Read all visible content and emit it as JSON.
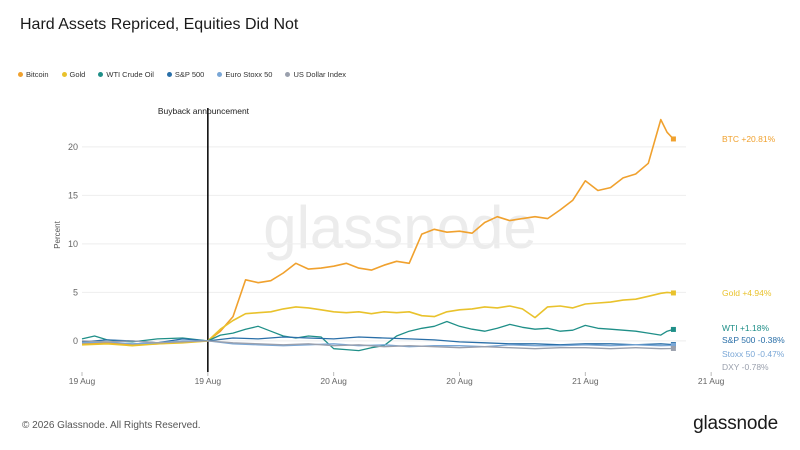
{
  "title": "Hard Assets Repriced, Equities Did Not",
  "footer": {
    "copyright": "© 2026 Glassnode. All Rights Reserved.",
    "logo": "glassnode"
  },
  "watermark": "glassnode",
  "colors": {
    "bitcoin": "#f0a12e",
    "gold": "#e9c22c",
    "wti": "#1f8f88",
    "sp500": "#2a6fa8",
    "stoxx": "#7aa7d6",
    "dxy": "#9aa0ad"
  },
  "chart_data": {
    "type": "line",
    "ylabel": "Percent",
    "ylim": [
      -3,
      24
    ],
    "yticks": [
      0,
      5,
      10,
      15,
      20
    ],
    "xlim": [
      0,
      48
    ],
    "x_ticks": [
      {
        "x": 0,
        "label": "19 Aug"
      },
      {
        "x": 10,
        "label": "19 Aug"
      },
      {
        "x": 20,
        "label": "20 Aug"
      },
      {
        "x": 30,
        "label": "20 Aug"
      },
      {
        "x": 40,
        "label": "21 Aug"
      },
      {
        "x": 50,
        "label": "21 Aug"
      }
    ],
    "event": {
      "x": 10,
      "label": "Buyback announcement"
    },
    "legend": [
      "Bitcoin",
      "Gold",
      "WTI Crude Oil",
      "S&P 500",
      "Euro Stoxx 50",
      "US Dollar Index"
    ],
    "series": [
      {
        "name": "Bitcoin",
        "key": "bitcoin",
        "end_label": "BTC +20.81%",
        "x": [
          0,
          2,
          4,
          6,
          8,
          10,
          11,
          12,
          13,
          14,
          15,
          16,
          17,
          18,
          19,
          20,
          21,
          22,
          23,
          24,
          25,
          26,
          27,
          28,
          29,
          30,
          31,
          32,
          33,
          34,
          35,
          36,
          37,
          38,
          39,
          40,
          41,
          42,
          43,
          44,
          45,
          46,
          46.5,
          47
        ],
        "y": [
          -0.3,
          -0.2,
          -0.4,
          -0.3,
          -0.1,
          0,
          1.0,
          2.5,
          6.3,
          6.0,
          6.2,
          7.0,
          8.0,
          7.4,
          7.5,
          7.7,
          8.0,
          7.5,
          7.3,
          7.8,
          8.2,
          8.0,
          11.0,
          11.5,
          11.2,
          11.3,
          11.1,
          12.2,
          12.8,
          12.4,
          12.6,
          12.8,
          12.6,
          13.5,
          14.5,
          16.5,
          15.5,
          15.8,
          16.8,
          17.2,
          18.3,
          22.8,
          21.5,
          20.81
        ]
      },
      {
        "name": "Gold",
        "key": "gold",
        "end_label": "Gold +4.94%",
        "x": [
          0,
          2,
          4,
          6,
          8,
          10,
          11,
          12,
          13,
          14,
          15,
          16,
          17,
          18,
          19,
          20,
          21,
          22,
          23,
          24,
          25,
          26,
          27,
          28,
          29,
          30,
          31,
          32,
          33,
          34,
          35,
          36,
          37,
          38,
          39,
          40,
          41,
          42,
          43,
          44,
          45,
          46,
          46.5,
          47
        ],
        "y": [
          -0.4,
          -0.3,
          -0.5,
          -0.3,
          -0.2,
          0,
          1.2,
          2.1,
          2.8,
          2.9,
          3.0,
          3.3,
          3.5,
          3.4,
          3.2,
          3.0,
          2.9,
          3.0,
          2.8,
          3.0,
          2.9,
          3.0,
          2.6,
          2.5,
          3.0,
          3.2,
          3.3,
          3.5,
          3.4,
          3.6,
          3.3,
          2.4,
          3.5,
          3.6,
          3.4,
          3.8,
          3.9,
          4.0,
          4.2,
          4.3,
          4.6,
          4.9,
          5.0,
          4.94
        ]
      },
      {
        "name": "WTI Crude Oil",
        "key": "wti",
        "end_label": "WTI +1.18%",
        "x": [
          0,
          1,
          2,
          4,
          6,
          8,
          10,
          11,
          12,
          13,
          14,
          15,
          16,
          17,
          18,
          19,
          20,
          21,
          22,
          23,
          24,
          25,
          26,
          27,
          28,
          29,
          30,
          31,
          32,
          33,
          34,
          35,
          36,
          37,
          38,
          39,
          40,
          41,
          42,
          43,
          44,
          45,
          46,
          46.5,
          47
        ],
        "y": [
          0.2,
          0.5,
          0.1,
          -0.1,
          0.2,
          0.3,
          0,
          0.6,
          0.8,
          1.2,
          1.5,
          1.0,
          0.5,
          0.3,
          0.5,
          0.4,
          -0.8,
          -0.9,
          -1.0,
          -0.7,
          -0.5,
          0.5,
          1.0,
          1.3,
          1.5,
          2.0,
          1.5,
          1.2,
          1.0,
          1.3,
          1.7,
          1.4,
          1.2,
          1.3,
          1.0,
          1.1,
          1.6,
          1.3,
          1.2,
          1.1,
          1.0,
          0.8,
          0.6,
          1.0,
          1.18
        ]
      },
      {
        "name": "S&P 500",
        "key": "sp500",
        "end_label": "S&P 500 -0.38%",
        "x": [
          0,
          2,
          4,
          6,
          8,
          10,
          12,
          14,
          16,
          18,
          20,
          22,
          24,
          26,
          28,
          30,
          32,
          34,
          36,
          38,
          40,
          42,
          44,
          46,
          47
        ],
        "y": [
          -0.1,
          0.1,
          0,
          -0.2,
          0.2,
          0,
          0.3,
          0.2,
          0.4,
          0.3,
          0.2,
          0.4,
          0.3,
          0.2,
          0.1,
          -0.1,
          -0.2,
          -0.3,
          -0.3,
          -0.4,
          -0.3,
          -0.3,
          -0.4,
          -0.3,
          -0.38
        ]
      },
      {
        "name": "Euro Stoxx 50",
        "key": "stoxx",
        "end_label": "Stoxx 50 -0.47%",
        "x": [
          0,
          2,
          4,
          6,
          8,
          10,
          12,
          14,
          16,
          18,
          20,
          22,
          24,
          26,
          28,
          30,
          32,
          34,
          36,
          38,
          40,
          42,
          44,
          46,
          47
        ],
        "y": [
          -0.2,
          -0.1,
          -0.3,
          -0.2,
          0,
          0,
          -0.3,
          -0.4,
          -0.5,
          -0.4,
          -0.3,
          -0.5,
          -0.4,
          -0.6,
          -0.5,
          -0.5,
          -0.6,
          -0.4,
          -0.5,
          -0.5,
          -0.4,
          -0.5,
          -0.4,
          -0.5,
          -0.47
        ]
      },
      {
        "name": "US Dollar Index",
        "key": "dxy",
        "end_label": "DXY -0.78%",
        "x": [
          0,
          2,
          4,
          6,
          8,
          10,
          12,
          14,
          16,
          18,
          20,
          22,
          24,
          26,
          28,
          30,
          32,
          34,
          36,
          38,
          40,
          42,
          44,
          46,
          47
        ],
        "y": [
          0,
          -0.1,
          0,
          -0.2,
          -0.1,
          0,
          -0.2,
          -0.3,
          -0.4,
          -0.3,
          -0.5,
          -0.4,
          -0.6,
          -0.5,
          -0.6,
          -0.7,
          -0.6,
          -0.7,
          -0.8,
          -0.7,
          -0.7,
          -0.8,
          -0.7,
          -0.8,
          -0.78
        ]
      }
    ]
  }
}
